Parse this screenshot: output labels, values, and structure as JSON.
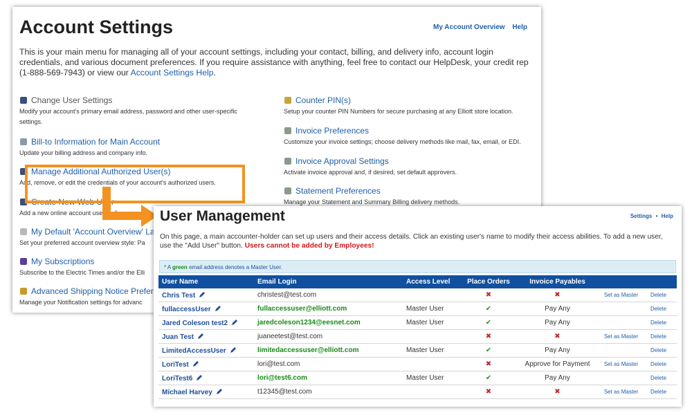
{
  "account_settings": {
    "title": "Account Settings",
    "nav": [
      "My Account Overview",
      "Help"
    ],
    "intro": {
      "text": "This is your main menu for managing all of your account settings, including your contact, billing, and delivery info, account login credentials, and various document preferences. If you require assistance with anything, feel free to contact our HelpDesk, your credit rep (1-888-569-7943) or view our ",
      "link": "Account Settings Help",
      "end": "."
    },
    "left_items": [
      {
        "title": "Change User Settings",
        "description": "Modify your account's primary email address, password and other user-specific settings."
      },
      {
        "title": "Bill-to Information for Main Account",
        "description": "Update your billing address and company info."
      },
      {
        "title": "Manage Additional Authorized User(s)",
        "description": "Add, remove, or edit the credentials of your account's authorized users."
      },
      {
        "title": "Create New Web User",
        "description": "Add a new online account user, defi"
      },
      {
        "title": "My Default 'Account Overview' Lay",
        "description": "Set your preferred account overview style: Pa"
      },
      {
        "title": "My Subscriptions",
        "description": "Subscribe to the Electric Times and/or the Elli"
      },
      {
        "title": "Advanced Shipping Notice Prefere",
        "description": "Manage your Notification settings for advanc"
      }
    ],
    "right_items": [
      {
        "title": "Counter PIN(s)",
        "description": "Setup your counter PIN Numbers for secure purchasing at any Elliott store location."
      },
      {
        "title": "Invoice Preferences",
        "description": "Customize your invoice settings; choose delivery methods like mail, fax, email, or EDI."
      },
      {
        "title": "Invoice Approval Settings",
        "description": "Activate invoice approval and, if desired, set default approvers."
      },
      {
        "title": "Statement Preferences",
        "description": "Manage your Statement and Summary Billing delivery methods."
      }
    ]
  },
  "user_management": {
    "title": "User Management",
    "nav": [
      "Settings",
      "Help"
    ],
    "separator": "•",
    "intro": {
      "text": "On this page, a main accounter-holder can set up users and their access details. Click an existing user's name to modify their access abilities. To add a new user, use the \"Add User\" button. ",
      "warning": "Users cannot be added by Employees!"
    },
    "note": {
      "prefix": "* A",
      "highlight": "green",
      "suffix": "email address denotes a Master User."
    },
    "table": {
      "columns": [
        "User Name",
        "Email Login",
        "Access Level",
        "Place Orders",
        "Invoice Payables"
      ],
      "rows": [
        {
          "user_name": "Chris Test",
          "email": "christest@test.com",
          "place_orders": "✖",
          "invoice_payables": "✖",
          "action": "Set as Master",
          "delete": "Delete"
        },
        {
          "user_name": "fullaccessUser",
          "email": "fullaccessuser@elliott.com",
          "master": true,
          "access_level": "Master User",
          "place_orders": "✔",
          "invoice_payables": "Pay Any",
          "delete": "Delete"
        },
        {
          "user_name": "Jared Coleson test2",
          "email": "jaredcoleson1234@eesnet.com",
          "master": true,
          "access_level": "Master User",
          "place_orders": "✔",
          "invoice_payables": "Pay Any",
          "delete": "Delete"
        },
        {
          "user_name": "Juan Test",
          "email": "juaneetest@test.com",
          "place_orders": "✖",
          "invoice_payables": "✖",
          "action": "Set as Master",
          "delete": "Delete"
        },
        {
          "user_name": "LimitedAccessUser",
          "email": "limitedaccessuser@elliott.com",
          "master": true,
          "access_level": "Master User",
          "place_orders": "✔",
          "invoice_payables": "Pay Any",
          "delete": "Delete"
        },
        {
          "user_name": "LoriTest",
          "email": "lori@test.com",
          "place_orders": "✖",
          "invoice_payables": "Approve for Payment",
          "action": "Set as Master",
          "delete": "Delete"
        },
        {
          "user_name": "LoriTest6",
          "email": "lori@test6.com",
          "master": true,
          "access_level": "Master User",
          "place_orders": "✔",
          "invoice_payables": "Pay Any",
          "delete": "Delete"
        },
        {
          "user_name": "Michael Harvey",
          "email": "t12345@test.com",
          "place_orders": "✖",
          "invoice_payables": "✖",
          "action": "Set as Master",
          "delete": "Delete"
        }
      ]
    }
  }
}
